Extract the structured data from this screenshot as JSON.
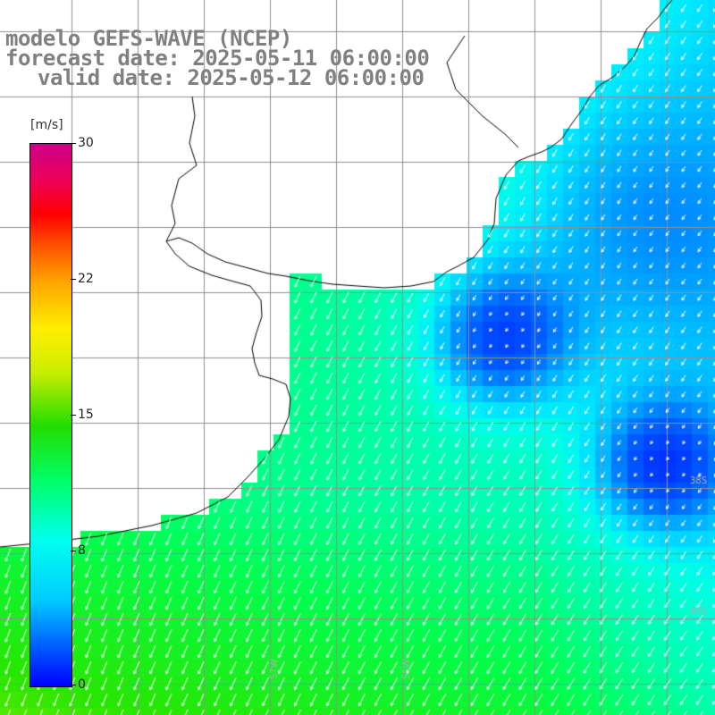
{
  "title": {
    "line1": "modelo GEFS-WAVE (NCEP)",
    "line2": "forecast date: 2025-05-11 06:00:00",
    "line3": "valid date: 2025-05-12 06:00:00"
  },
  "colorbar": {
    "unit": "[m/s]",
    "ticks": [
      "30",
      "22",
      "15",
      "8",
      "0"
    ],
    "tick_values": [
      30,
      22,
      15,
      8,
      0
    ],
    "min": 0,
    "max": 30
  },
  "map": {
    "lat_labels": [
      "38S",
      "40S"
    ],
    "lon_labels": [
      "57W",
      "55W"
    ],
    "colors": {
      "land": "#ffffff",
      "coast": "#000000",
      "grid": "#909090",
      "arrow": "#ffffff",
      "label": "#b0b0b0"
    },
    "wind_direction": "towards south-southwest"
  }
}
